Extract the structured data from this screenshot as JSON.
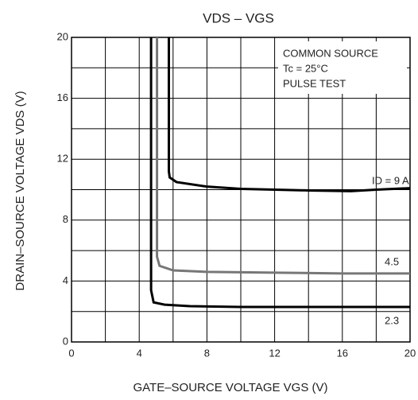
{
  "chart_data": {
    "type": "line",
    "title": "VDS – VGS",
    "x_label": "GATE–SOURCE VOLTAGE   VGS   (V)",
    "y_label": "DRAIN–SOURCE VOLTAGE   VDS   (V)",
    "annotations": [
      "COMMON SOURCE",
      "Tc = 25°C",
      "PULSE TEST"
    ],
    "xlim": [
      0,
      20
    ],
    "ylim": [
      0,
      20
    ],
    "xticks": [
      0,
      4,
      8,
      12,
      16,
      20
    ],
    "yticks": [
      0,
      4,
      8,
      12,
      16,
      20
    ],
    "xgrid": [
      2,
      4,
      6,
      8,
      10,
      12,
      14,
      16,
      18
    ],
    "ygrid": [
      2,
      4,
      6,
      8,
      10,
      12,
      14,
      16,
      18
    ],
    "grid": true,
    "series": [
      {
        "name": "ID = 9 A",
        "color": "#000000",
        "x": [
          5.75,
          5.75,
          5.8,
          6.2,
          8,
          10,
          12,
          14,
          16.5,
          18,
          20
        ],
        "values": [
          20,
          11.2,
          10.8,
          10.5,
          10.2,
          10.05,
          10.0,
          9.95,
          9.9,
          10.0,
          10.1
        ]
      },
      {
        "name": "4.5",
        "color": "#777777",
        "x": [
          5.05,
          5.05,
          5.2,
          6,
          8,
          12,
          16,
          20
        ],
        "values": [
          20,
          5.6,
          5.0,
          4.7,
          4.6,
          4.55,
          4.5,
          4.5
        ]
      },
      {
        "name": "2.3",
        "color": "#000000",
        "x": [
          4.7,
          4.7,
          4.85,
          5.5,
          7,
          10,
          14,
          20
        ],
        "values": [
          20,
          3.4,
          2.6,
          2.45,
          2.35,
          2.3,
          2.3,
          2.3
        ]
      }
    ]
  }
}
